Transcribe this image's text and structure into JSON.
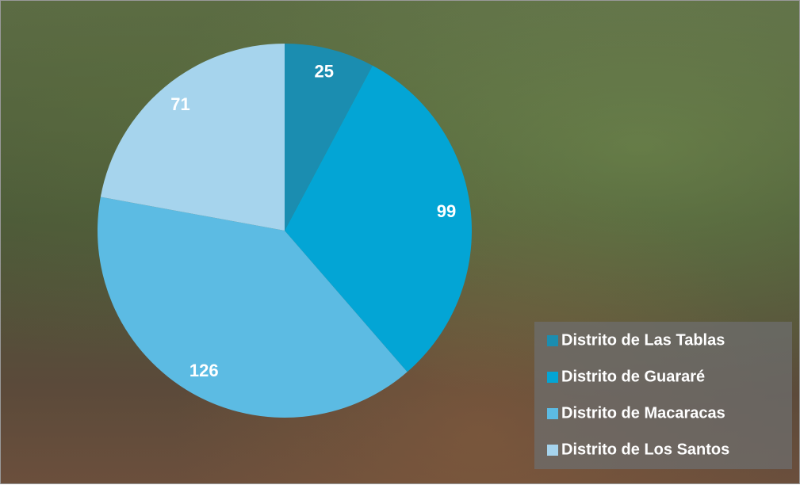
{
  "chart_data": {
    "type": "pie",
    "categories": [
      "Distrito de Las Tablas",
      "Distrito de Guararé",
      "Distrito de Macaracas",
      "Distrito de Los Santos"
    ],
    "values": [
      25,
      99,
      126,
      71
    ],
    "colors": [
      "#1b8db0",
      "#03a5d5",
      "#5cbbe3",
      "#a6d4ed"
    ],
    "legend": "lower right"
  }
}
